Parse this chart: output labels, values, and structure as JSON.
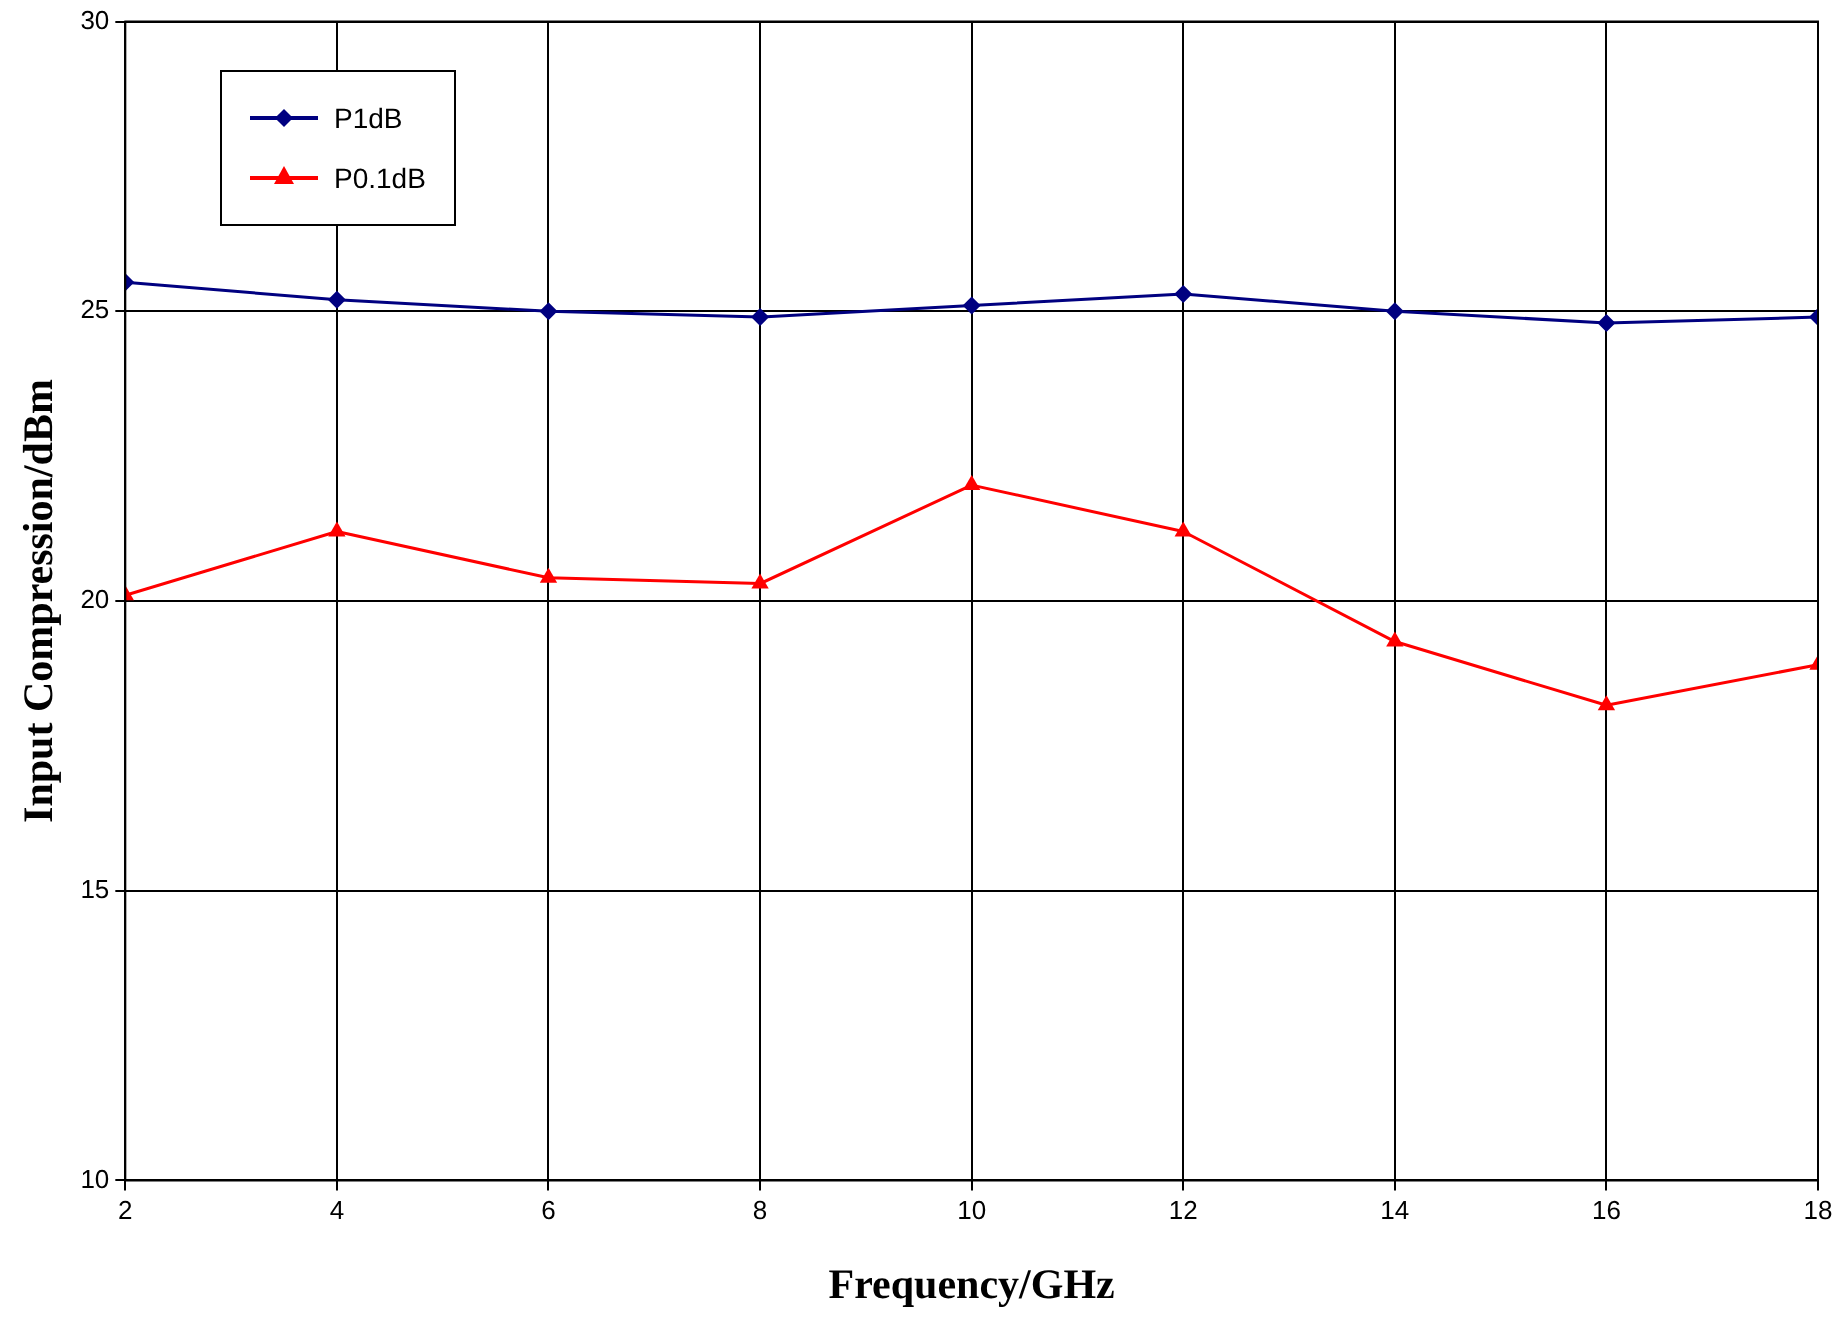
{
  "chart_data": {
    "type": "line",
    "xlabel": "Frequency/GHz",
    "ylabel": "Input Compression/dBm",
    "x": [
      2,
      4,
      6,
      8,
      10,
      12,
      14,
      16,
      18
    ],
    "series": [
      {
        "name": "P1dB",
        "color": "#000080",
        "marker": "diamond",
        "values": [
          25.5,
          25.2,
          25.0,
          24.9,
          25.1,
          25.3,
          25.0,
          24.8,
          24.9
        ]
      },
      {
        "name": "P0.1dB",
        "color": "#ff0000",
        "marker": "triangle",
        "values": [
          20.1,
          21.2,
          20.4,
          20.3,
          22.0,
          21.2,
          19.3,
          18.2,
          18.9
        ]
      }
    ],
    "xlim": [
      2,
      18
    ],
    "xticks": [
      2,
      4,
      6,
      8,
      10,
      12,
      14,
      16,
      18
    ],
    "ylim": [
      10,
      30
    ],
    "yticks": [
      10,
      15,
      20,
      25,
      30
    ],
    "grid": true,
    "legend": "top left",
    "line_style": "solid"
  }
}
